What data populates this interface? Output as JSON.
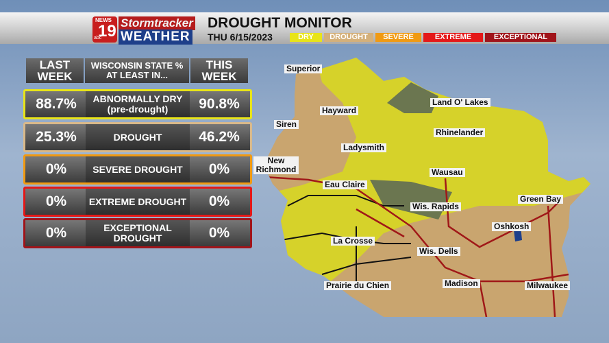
{
  "header": {
    "logo": {
      "network": "NEWS",
      "channel": "19",
      "affiliate": "abc",
      "brand": "Stormtracker",
      "brand_sub": "WEATHER"
    },
    "title": "DROUGHT MONITOR",
    "date": "THU 6/15/2023",
    "legend": [
      "DRY",
      "DROUGHT",
      "SEVERE",
      "EXTREME",
      "EXCEPTIONAL"
    ]
  },
  "table": {
    "headers": [
      "LAST WEEK",
      "WISCONSIN STATE % AT LEAST IN...",
      "THIS WEEK"
    ],
    "rows": [
      [
        "88.7%",
        "ABNORMALLY DRY (pre-drought)",
        "90.8%"
      ],
      [
        "25.3%",
        "DROUGHT",
        "46.2%"
      ],
      [
        "0%",
        "SEVERE DROUGHT",
        "0%"
      ],
      [
        "0%",
        "EXTREME DROUGHT",
        "0%"
      ],
      [
        "0%",
        "EXCEPTIONAL DROUGHT",
        "0%"
      ]
    ]
  },
  "map": {
    "cities": [
      "Superior",
      "Land O' Lakes",
      "Hayward",
      "Siren",
      "Rhinelander",
      "Ladysmith",
      "New Richmond",
      "Wausau",
      "Eau Claire",
      "Green Bay",
      "Wis. Rapids",
      "Oshkosh",
      "La Crosse",
      "Wis. Dells",
      "Madison",
      "Milwaukee",
      "Prairie du Chien"
    ]
  }
}
